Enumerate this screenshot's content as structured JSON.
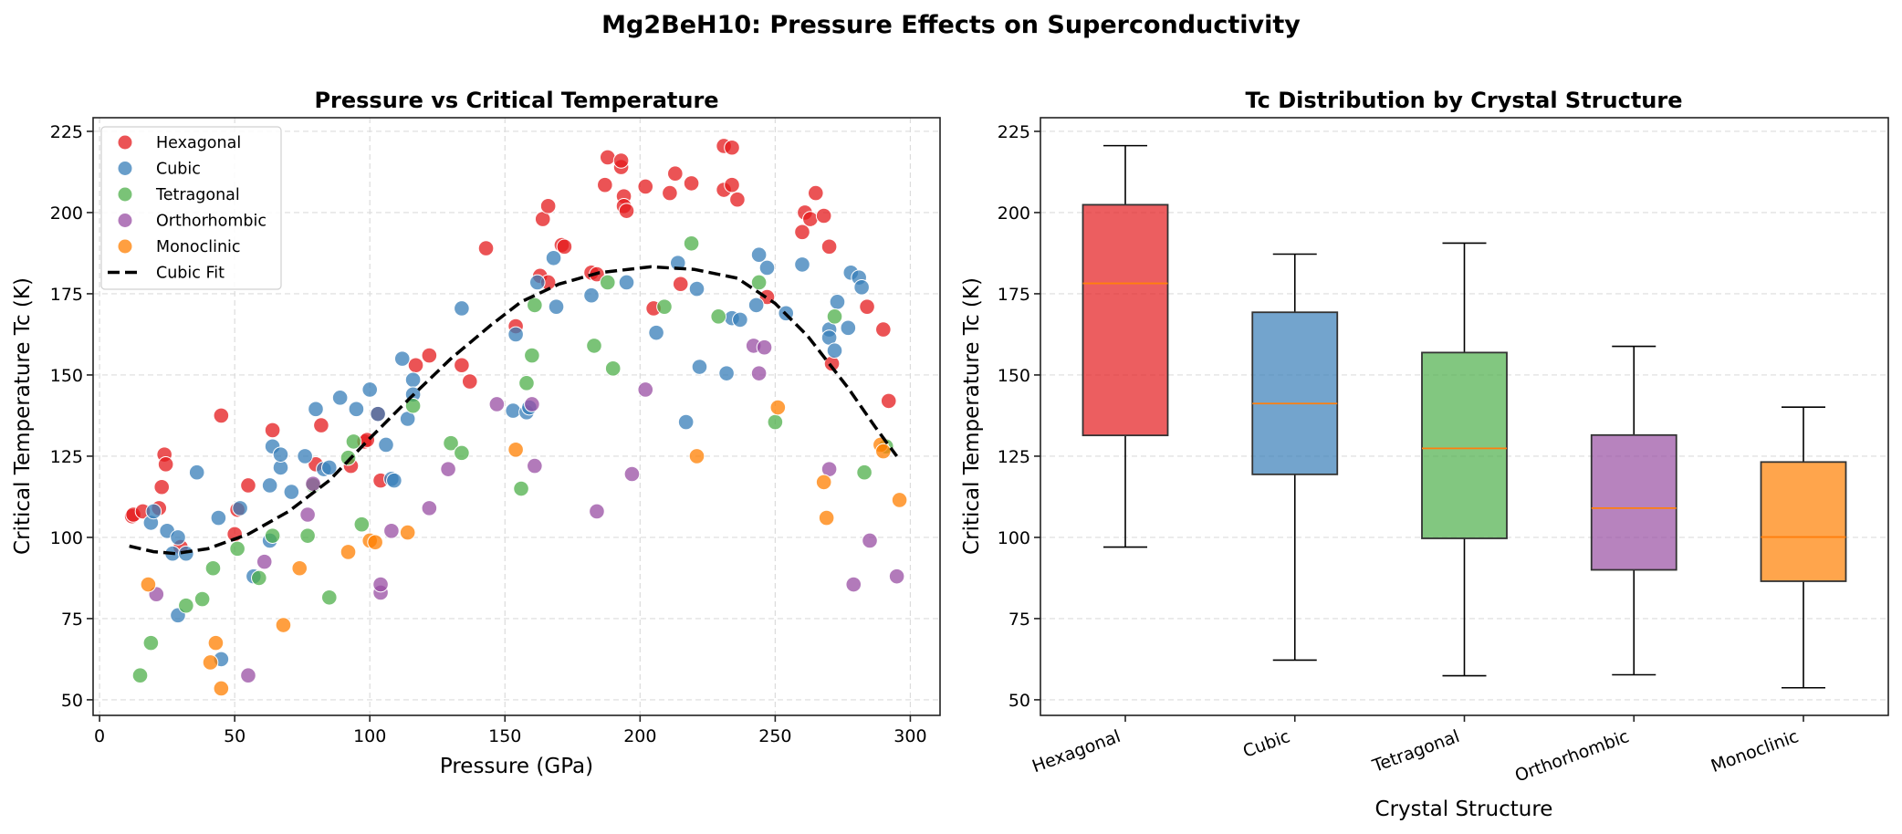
{
  "figure": {
    "title": "Mg2BeH10: Pressure Effects on Superconductivity"
  },
  "chart_data": [
    {
      "type": "scatter",
      "title": "Pressure vs Critical Temperature",
      "xlabel": "Pressure (GPa)",
      "ylabel": "Critical Temperature Tc (K)",
      "xlim": [
        -2.4,
        311
      ],
      "ylim": [
        45.2,
        229.2
      ],
      "xticks": [
        0,
        50,
        100,
        150,
        200,
        250,
        300
      ],
      "yticks": [
        50,
        75,
        100,
        125,
        150,
        175,
        200,
        225
      ],
      "grid": true,
      "legend_placement": "top-left",
      "series": [
        {
          "name": "Hexagonal",
          "color": "#e41a1c",
          "points": [
            [
              12,
              106.5
            ],
            [
              12.5,
              107
            ],
            [
              16,
              108
            ],
            [
              22,
              109
            ],
            [
              23,
              115.5
            ],
            [
              24,
              125.5
            ],
            [
              24.5,
              122.5
            ],
            [
              30,
              97
            ],
            [
              45,
              137.5
            ],
            [
              50,
              101
            ],
            [
              51,
              108.5
            ],
            [
              55,
              116
            ],
            [
              64,
              133
            ],
            [
              80,
              122.5
            ],
            [
              82,
              134.5
            ],
            [
              93,
              122
            ],
            [
              98,
              129.5
            ],
            [
              99,
              130
            ],
            [
              103,
              138
            ],
            [
              104,
              117.5
            ],
            [
              117,
              153
            ],
            [
              122,
              156
            ],
            [
              134,
              153
            ],
            [
              137,
              148
            ],
            [
              143,
              189
            ],
            [
              154,
              165
            ],
            [
              163,
              180.5
            ],
            [
              164,
              198
            ],
            [
              166,
              202
            ],
            [
              166,
              178.5
            ],
            [
              171,
              190
            ],
            [
              172,
              189.5
            ],
            [
              182,
              181.5
            ],
            [
              184,
              181
            ],
            [
              187,
              208.5
            ],
            [
              188,
              217
            ],
            [
              193,
              214
            ],
            [
              193,
              216
            ],
            [
              194,
              205
            ],
            [
              194,
              202
            ],
            [
              195,
              200.5
            ],
            [
              202,
              208
            ],
            [
              205,
              170.5
            ],
            [
              211,
              206
            ],
            [
              213,
              212
            ],
            [
              215,
              178
            ],
            [
              219,
              209
            ],
            [
              231,
              220.5
            ],
            [
              231,
              207
            ],
            [
              234,
              220
            ],
            [
              234,
              208.5
            ],
            [
              236,
              204
            ],
            [
              247,
              174
            ],
            [
              260,
              194
            ],
            [
              261,
              200
            ],
            [
              263,
              198
            ],
            [
              265,
              206
            ],
            [
              268,
              199
            ],
            [
              270,
              189.5
            ],
            [
              271,
              153.5
            ],
            [
              284,
              171
            ],
            [
              290,
              164
            ],
            [
              292,
              142
            ]
          ]
        },
        {
          "name": "Cubic",
          "color": "#377eb8",
          "points": [
            [
              19,
              104.5
            ],
            [
              20,
              108
            ],
            [
              25,
              102
            ],
            [
              27,
              95
            ],
            [
              29,
              76
            ],
            [
              29,
              100
            ],
            [
              32,
              95
            ],
            [
              36,
              120
            ],
            [
              44,
              106
            ],
            [
              45,
              62.5
            ],
            [
              52,
              109
            ],
            [
              57,
              88
            ],
            [
              63,
              99
            ],
            [
              63,
              116
            ],
            [
              64,
              128
            ],
            [
              67,
              121.5
            ],
            [
              67,
              125.5
            ],
            [
              71,
              114
            ],
            [
              76,
              125
            ],
            [
              80,
              139.5
            ],
            [
              83,
              121
            ],
            [
              85,
              121.5
            ],
            [
              89,
              143
            ],
            [
              95,
              139.5
            ],
            [
              100,
              145.5
            ],
            [
              103,
              138
            ],
            [
              106,
              128.5
            ],
            [
              108,
              118
            ],
            [
              109,
              117.5
            ],
            [
              112,
              155
            ],
            [
              114,
              136.5
            ],
            [
              116,
              148.5
            ],
            [
              116,
              144
            ],
            [
              134,
              170.5
            ],
            [
              153,
              139
            ],
            [
              154,
              162.5
            ],
            [
              158,
              138.5
            ],
            [
              159,
              140
            ],
            [
              162,
              178.5
            ],
            [
              168,
              186
            ],
            [
              169,
              171
            ],
            [
              182,
              174.5
            ],
            [
              195,
              178.5
            ],
            [
              206,
              163
            ],
            [
              214,
              184.5
            ],
            [
              217,
              135.5
            ],
            [
              221,
              176.5
            ],
            [
              222,
              152.5
            ],
            [
              232,
              150.5
            ],
            [
              234,
              167.5
            ],
            [
              237,
              167
            ],
            [
              243,
              171.5
            ],
            [
              244,
              187
            ],
            [
              247,
              183
            ],
            [
              254,
              169
            ],
            [
              260,
              184
            ],
            [
              270,
              164
            ],
            [
              270,
              161.5
            ],
            [
              272,
              157.5
            ],
            [
              273,
              172.5
            ],
            [
              277,
              164.5
            ],
            [
              278,
              181.5
            ],
            [
              281,
              180
            ],
            [
              282,
              177
            ]
          ]
        },
        {
          "name": "Tetragonal",
          "color": "#4daf4a",
          "points": [
            [
              15,
              57.5
            ],
            [
              19,
              67.5
            ],
            [
              32,
              79
            ],
            [
              38,
              81
            ],
            [
              42,
              90.5
            ],
            [
              51,
              96.5
            ],
            [
              59,
              87.5
            ],
            [
              64,
              100.5
            ],
            [
              77,
              100.5
            ],
            [
              79,
              116
            ],
            [
              85,
              81.5
            ],
            [
              92,
              124.5
            ],
            [
              94,
              129.5
            ],
            [
              97,
              104
            ],
            [
              116,
              140.5
            ],
            [
              130,
              129
            ],
            [
              134,
              126
            ],
            [
              156,
              115
            ],
            [
              158,
              147.5
            ],
            [
              160,
              156
            ],
            [
              161,
              171.5
            ],
            [
              183,
              159
            ],
            [
              188,
              178.5
            ],
            [
              190,
              152
            ],
            [
              209,
              171
            ],
            [
              219,
              190.5
            ],
            [
              229,
              168
            ],
            [
              244,
              178.5
            ],
            [
              250,
              135.5
            ],
            [
              272,
              168
            ],
            [
              283,
              120
            ],
            [
              291,
              128
            ]
          ]
        },
        {
          "name": "Orthorhombic",
          "color": "#984ea3",
          "points": [
            [
              21,
              82.5
            ],
            [
              55,
              57.5
            ],
            [
              61,
              92.5
            ],
            [
              77,
              107
            ],
            [
              79,
              116.5
            ],
            [
              104,
              83
            ],
            [
              104,
              85.5
            ],
            [
              108,
              102
            ],
            [
              122,
              109
            ],
            [
              129,
              121
            ],
            [
              147,
              141
            ],
            [
              160,
              141
            ],
            [
              161,
              122
            ],
            [
              184,
              108
            ],
            [
              197,
              119.5
            ],
            [
              202,
              145.5
            ],
            [
              242,
              159
            ],
            [
              244,
              150.5
            ],
            [
              246,
              158.5
            ],
            [
              270,
              121
            ],
            [
              279,
              85.5
            ],
            [
              285,
              99
            ],
            [
              295,
              88
            ]
          ]
        },
        {
          "name": "Monoclinic",
          "color": "#ff7f00",
          "points": [
            [
              18,
              85.5
            ],
            [
              41,
              61.5
            ],
            [
              43,
              67.5
            ],
            [
              45,
              53.5
            ],
            [
              68,
              73
            ],
            [
              74,
              90.5
            ],
            [
              92,
              95.5
            ],
            [
              100,
              99
            ],
            [
              102,
              98.5
            ],
            [
              114,
              101.5
            ],
            [
              154,
              127
            ],
            [
              221,
              125
            ],
            [
              251,
              140
            ],
            [
              268,
              117
            ],
            [
              269,
              106
            ],
            [
              289,
              128.5
            ],
            [
              290,
              126.5
            ],
            [
              296,
              111.5
            ]
          ]
        }
      ],
      "fit": {
        "name": "Cubic Fit",
        "color": "#000000",
        "style": "dashed",
        "points": [
          [
            11,
            97.3
          ],
          [
            20,
            95.6
          ],
          [
            28,
            95
          ],
          [
            40,
            96.5
          ],
          [
            55,
            101
          ],
          [
            70,
            108
          ],
          [
            85,
            117.5
          ],
          [
            100,
            130.5
          ],
          [
            115,
            143
          ],
          [
            130,
            155
          ],
          [
            145,
            165.5
          ],
          [
            156,
            172.5
          ],
          [
            170,
            178
          ],
          [
            185,
            181.5
          ],
          [
            204,
            183.3
          ],
          [
            220,
            182.5
          ],
          [
            236,
            179.8
          ],
          [
            250,
            172
          ],
          [
            262,
            162
          ],
          [
            277,
            146
          ],
          [
            287,
            134
          ],
          [
            295,
            125
          ]
        ]
      }
    },
    {
      "type": "box",
      "title": "Tc Distribution by Crystal Structure",
      "xlabel": "Crystal Structure",
      "ylabel": "Critical Temperature Tc (K)",
      "ylim": [
        45.2,
        229.2
      ],
      "yticks": [
        50,
        75,
        100,
        125,
        150,
        175,
        200,
        225
      ],
      "grid": true,
      "categories": [
        "Hexagonal",
        "Cubic",
        "Tetragonal",
        "Orthorhombic",
        "Monoclinic"
      ],
      "median_color": "#ff7f0e",
      "boxes": [
        {
          "name": "Hexagonal",
          "color": "#e41a1c",
          "whisker_low": 97.0,
          "q1": 131.4,
          "median": 178.2,
          "q3": 202.4,
          "whisker_high": 220.6
        },
        {
          "name": "Cubic",
          "color": "#377eb8",
          "whisker_low": 62.2,
          "q1": 119.4,
          "median": 141.2,
          "q3": 169.3,
          "whisker_high": 187.2
        },
        {
          "name": "Tetragonal",
          "color": "#4daf4a",
          "whisker_low": 57.4,
          "q1": 99.7,
          "median": 127.4,
          "q3": 156.9,
          "whisker_high": 190.6
        },
        {
          "name": "Orthorhombic",
          "color": "#984ea3",
          "whisker_low": 57.7,
          "q1": 90.0,
          "median": 109.0,
          "q3": 131.5,
          "whisker_high": 158.8
        },
        {
          "name": "Monoclinic",
          "color": "#ff7f00",
          "whisker_low": 53.7,
          "q1": 86.5,
          "median": 100.1,
          "q3": 123.2,
          "whisker_high": 140.1
        }
      ]
    }
  ]
}
